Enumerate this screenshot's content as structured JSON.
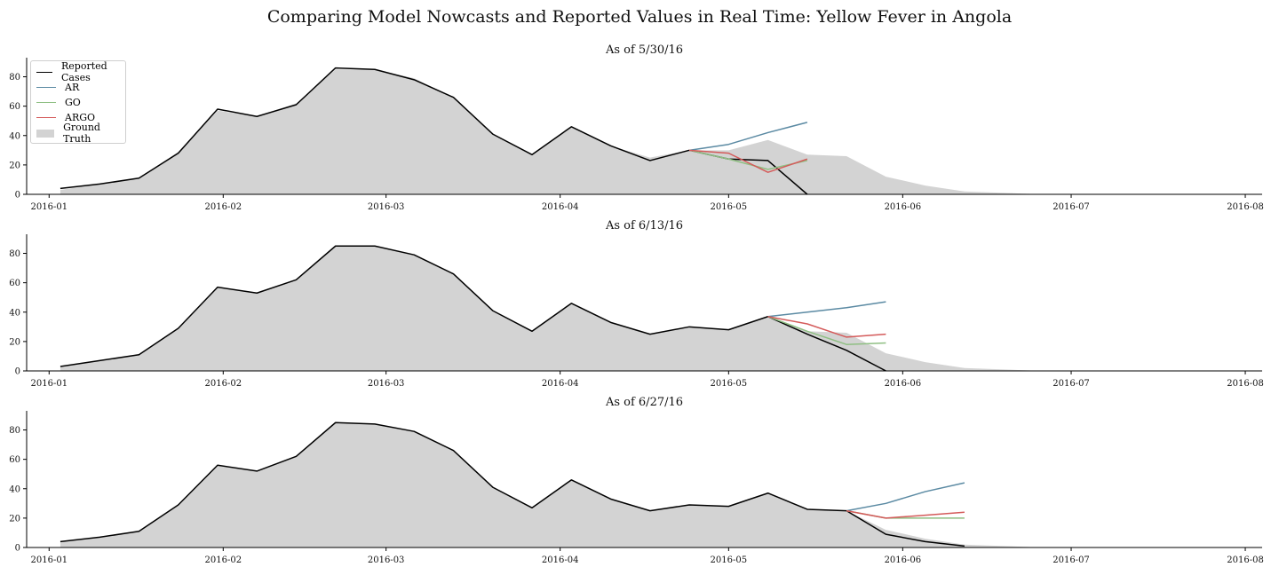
{
  "title": "Comparing Model Nowcasts and Reported Values in Real Time: Yellow Fever in Angola",
  "legend": {
    "items": [
      {
        "label": "Reported Cases",
        "color": "#000000",
        "kind": "line"
      },
      {
        "label": "AR",
        "color": "#5b8aa3",
        "kind": "line"
      },
      {
        "label": "GO",
        "color": "#8fbf83",
        "kind": "line"
      },
      {
        "label": "ARGO",
        "color": "#d45a5a",
        "kind": "line"
      },
      {
        "label": "Ground Truth",
        "color": "#d3d3d3",
        "kind": "area"
      }
    ]
  },
  "chart_data": [
    {
      "type": "line",
      "title": "As of 5/30/16",
      "xlim": [
        "2016-01",
        "2016-08"
      ],
      "ylim": [
        0,
        93
      ],
      "x_ticks": [
        "2016-01",
        "2016-02",
        "2016-03",
        "2016-04",
        "2016-05",
        "2016-06",
        "2016-07",
        "2016-08"
      ],
      "y_ticks": [
        0,
        20,
        40,
        60,
        80
      ],
      "ground_truth": {
        "x": [
          "2016-01-03",
          "2016-01-10",
          "2016-01-17",
          "2016-01-24",
          "2016-01-31",
          "2016-02-07",
          "2016-02-14",
          "2016-02-21",
          "2016-02-28",
          "2016-03-06",
          "2016-03-13",
          "2016-03-20",
          "2016-03-27",
          "2016-04-03",
          "2016-04-10",
          "2016-04-17",
          "2016-04-24",
          "2016-05-01",
          "2016-05-08",
          "2016-05-15",
          "2016-05-22",
          "2016-05-29",
          "2016-06-05",
          "2016-06-12",
          "2016-06-19",
          "2016-06-26"
        ],
        "y": [
          3,
          7,
          11,
          29,
          57,
          53,
          62,
          85,
          85,
          79,
          66,
          41,
          27,
          46,
          33,
          25,
          30,
          30,
          37,
          27,
          26,
          12,
          6,
          2,
          1,
          0
        ]
      },
      "series": [
        {
          "name": "Reported Cases",
          "color": "#000000",
          "x": [
            "2016-01-03",
            "2016-01-10",
            "2016-01-17",
            "2016-01-24",
            "2016-01-31",
            "2016-02-07",
            "2016-02-14",
            "2016-02-21",
            "2016-02-28",
            "2016-03-06",
            "2016-03-13",
            "2016-03-20",
            "2016-03-27",
            "2016-04-03",
            "2016-04-10",
            "2016-04-17",
            "2016-04-24",
            "2016-05-01",
            "2016-05-08",
            "2016-05-15"
          ],
          "y": [
            4,
            7,
            11,
            28,
            58,
            53,
            61,
            86,
            85,
            78,
            66,
            41,
            27,
            46,
            33,
            23,
            30,
            24,
            23,
            0
          ]
        },
        {
          "name": "AR",
          "color": "#5b8aa3",
          "x": [
            "2016-04-24",
            "2016-05-01",
            "2016-05-08",
            "2016-05-15"
          ],
          "y": [
            30,
            34,
            42,
            49
          ]
        },
        {
          "name": "GO",
          "color": "#8fbf83",
          "x": [
            "2016-04-24",
            "2016-05-01",
            "2016-05-08",
            "2016-05-15"
          ],
          "y": [
            30,
            24,
            17,
            23
          ]
        },
        {
          "name": "ARGO",
          "color": "#d45a5a",
          "x": [
            "2016-04-24",
            "2016-05-01",
            "2016-05-08",
            "2016-05-15"
          ],
          "y": [
            30,
            28,
            15,
            24
          ]
        }
      ]
    },
    {
      "type": "line",
      "title": "As of 6/13/16",
      "xlim": [
        "2016-01",
        "2016-08"
      ],
      "ylim": [
        0,
        93
      ],
      "x_ticks": [
        "2016-01",
        "2016-02",
        "2016-03",
        "2016-04",
        "2016-05",
        "2016-06",
        "2016-07",
        "2016-08"
      ],
      "y_ticks": [
        0,
        20,
        40,
        60,
        80
      ],
      "ground_truth": {
        "x": [
          "2016-01-03",
          "2016-01-10",
          "2016-01-17",
          "2016-01-24",
          "2016-01-31",
          "2016-02-07",
          "2016-02-14",
          "2016-02-21",
          "2016-02-28",
          "2016-03-06",
          "2016-03-13",
          "2016-03-20",
          "2016-03-27",
          "2016-04-03",
          "2016-04-10",
          "2016-04-17",
          "2016-04-24",
          "2016-05-01",
          "2016-05-08",
          "2016-05-15",
          "2016-05-22",
          "2016-05-29",
          "2016-06-05",
          "2016-06-12",
          "2016-06-19",
          "2016-06-26"
        ],
        "y": [
          3,
          7,
          11,
          29,
          57,
          53,
          62,
          85,
          85,
          79,
          66,
          41,
          27,
          46,
          33,
          25,
          30,
          28,
          37,
          27,
          26,
          12,
          6,
          2,
          1,
          0
        ]
      },
      "series": [
        {
          "name": "Reported Cases",
          "color": "#000000",
          "x": [
            "2016-01-03",
            "2016-01-10",
            "2016-01-17",
            "2016-01-24",
            "2016-01-31",
            "2016-02-07",
            "2016-02-14",
            "2016-02-21",
            "2016-02-28",
            "2016-03-06",
            "2016-03-13",
            "2016-03-20",
            "2016-03-27",
            "2016-04-03",
            "2016-04-10",
            "2016-04-17",
            "2016-04-24",
            "2016-05-01",
            "2016-05-08",
            "2016-05-15",
            "2016-05-22",
            "2016-05-29"
          ],
          "y": [
            3,
            7,
            11,
            29,
            57,
            53,
            62,
            85,
            85,
            79,
            66,
            41,
            27,
            46,
            33,
            25,
            30,
            28,
            37,
            25,
            14,
            0
          ]
        },
        {
          "name": "AR",
          "color": "#5b8aa3",
          "x": [
            "2016-05-08",
            "2016-05-15",
            "2016-05-22",
            "2016-05-29"
          ],
          "y": [
            37,
            40,
            43,
            47
          ]
        },
        {
          "name": "GO",
          "color": "#8fbf83",
          "x": [
            "2016-05-08",
            "2016-05-15",
            "2016-05-22",
            "2016-05-29"
          ],
          "y": [
            37,
            27,
            18,
            19
          ]
        },
        {
          "name": "ARGO",
          "color": "#d45a5a",
          "x": [
            "2016-05-08",
            "2016-05-15",
            "2016-05-22",
            "2016-05-29"
          ],
          "y": [
            37,
            32,
            23,
            25
          ]
        }
      ]
    },
    {
      "type": "line",
      "title": "As of 6/27/16",
      "xlim": [
        "2016-01",
        "2016-08"
      ],
      "ylim": [
        0,
        93
      ],
      "x_ticks": [
        "2016-01",
        "2016-02",
        "2016-03",
        "2016-04",
        "2016-05",
        "2016-06",
        "2016-07",
        "2016-08"
      ],
      "y_ticks": [
        0,
        20,
        40,
        60,
        80
      ],
      "ground_truth": {
        "x": [
          "2016-01-03",
          "2016-01-10",
          "2016-01-17",
          "2016-01-24",
          "2016-01-31",
          "2016-02-07",
          "2016-02-14",
          "2016-02-21",
          "2016-02-28",
          "2016-03-06",
          "2016-03-13",
          "2016-03-20",
          "2016-03-27",
          "2016-04-03",
          "2016-04-10",
          "2016-04-17",
          "2016-04-24",
          "2016-05-01",
          "2016-05-08",
          "2016-05-15",
          "2016-05-22",
          "2016-05-29",
          "2016-06-05",
          "2016-06-12",
          "2016-06-19",
          "2016-06-26"
        ],
        "y": [
          4,
          7,
          11,
          29,
          56,
          52,
          62,
          85,
          84,
          79,
          66,
          41,
          27,
          46,
          33,
          25,
          29,
          28,
          37,
          26,
          25,
          12,
          6,
          2,
          1,
          0
        ]
      },
      "series": [
        {
          "name": "Reported Cases",
          "color": "#000000",
          "x": [
            "2016-01-03",
            "2016-01-10",
            "2016-01-17",
            "2016-01-24",
            "2016-01-31",
            "2016-02-07",
            "2016-02-14",
            "2016-02-21",
            "2016-02-28",
            "2016-03-06",
            "2016-03-13",
            "2016-03-20",
            "2016-03-27",
            "2016-04-03",
            "2016-04-10",
            "2016-04-17",
            "2016-04-24",
            "2016-05-01",
            "2016-05-08",
            "2016-05-15",
            "2016-05-22",
            "2016-05-29",
            "2016-06-05",
            "2016-06-12"
          ],
          "y": [
            4,
            7,
            11,
            29,
            56,
            52,
            62,
            85,
            84,
            79,
            66,
            41,
            27,
            46,
            33,
            25,
            29,
            28,
            37,
            26,
            25,
            9,
            4,
            1
          ]
        },
        {
          "name": "AR",
          "color": "#5b8aa3",
          "x": [
            "2016-05-22",
            "2016-05-29",
            "2016-06-05",
            "2016-06-12"
          ],
          "y": [
            25,
            30,
            38,
            44
          ]
        },
        {
          "name": "GO",
          "color": "#8fbf83",
          "x": [
            "2016-05-22",
            "2016-05-29",
            "2016-06-05",
            "2016-06-12"
          ],
          "y": [
            25,
            20,
            20,
            20
          ]
        },
        {
          "name": "ARGO",
          "color": "#d45a5a",
          "x": [
            "2016-05-22",
            "2016-05-29",
            "2016-06-05",
            "2016-06-12"
          ],
          "y": [
            25,
            20,
            22,
            24
          ]
        }
      ]
    }
  ]
}
